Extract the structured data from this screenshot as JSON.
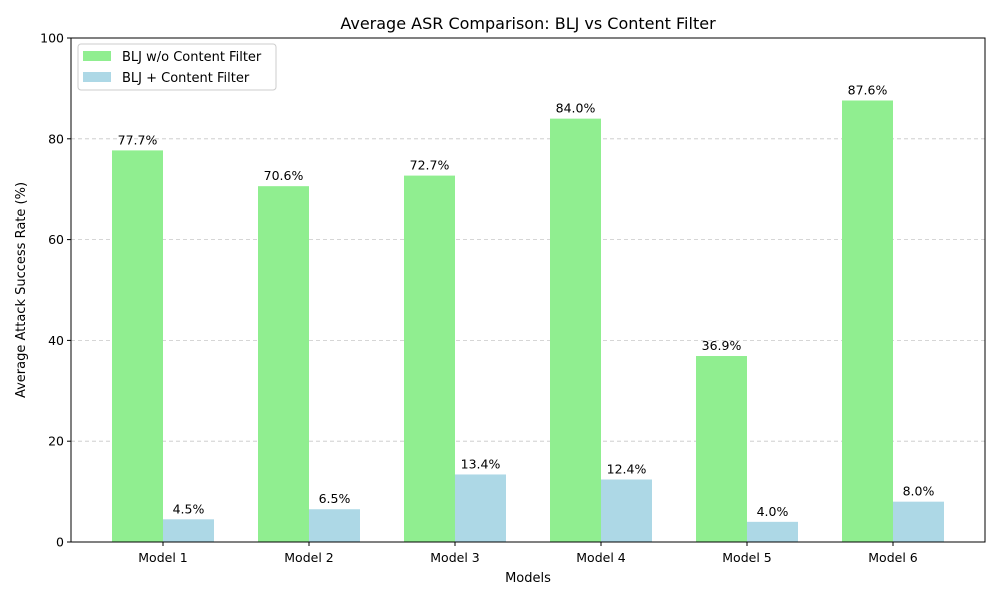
{
  "chart_data": {
    "type": "bar",
    "title": "Average ASR Comparison: BLJ vs Content Filter",
    "xlabel": "Models",
    "ylabel": "Average Attack Success Rate (%)",
    "ylim": [
      0,
      100
    ],
    "yticks": [
      0,
      20,
      40,
      60,
      80,
      100
    ],
    "grid": "y-dashed",
    "legend_position": "top-left",
    "categories": [
      "Model 1",
      "Model 2",
      "Model 3",
      "Model 4",
      "Model 5",
      "Model 6"
    ],
    "series": [
      {
        "name": "BLJ w/o Content Filter",
        "color": "#90ee90",
        "values": [
          77.7,
          70.6,
          72.7,
          84.0,
          36.9,
          87.6
        ],
        "labels": [
          "77.7%",
          "70.6%",
          "72.7%",
          "84.0%",
          "36.9%",
          "87.6%"
        ]
      },
      {
        "name": "BLJ + Content Filter",
        "color": "#add8e6",
        "values": [
          4.5,
          6.5,
          13.4,
          12.4,
          4.0,
          8.0
        ],
        "labels": [
          "4.5%",
          "6.5%",
          "13.4%",
          "12.4%",
          "4.0%",
          "8.0%"
        ]
      }
    ]
  }
}
